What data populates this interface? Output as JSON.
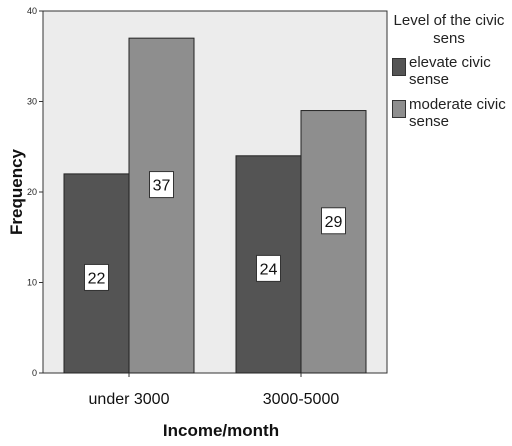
{
  "chart_data": {
    "type": "bar",
    "categories": [
      "under 3000",
      "3000-5000"
    ],
    "series": [
      {
        "name": "elevate civic sense",
        "values": [
          22,
          24
        ],
        "color": "#545454"
      },
      {
        "name": "moderate civic sense",
        "values": [
          37,
          29
        ],
        "color": "#8e8e8e"
      }
    ],
    "xlabel": "Income/month",
    "ylabel": "Frequency",
    "ylim": [
      0,
      40
    ],
    "yticks": [
      0,
      10,
      20,
      30,
      40
    ],
    "legend": {
      "title": "Level of the civic sens",
      "position": "right"
    },
    "plot_background": "#ececec",
    "data_labels": true
  }
}
